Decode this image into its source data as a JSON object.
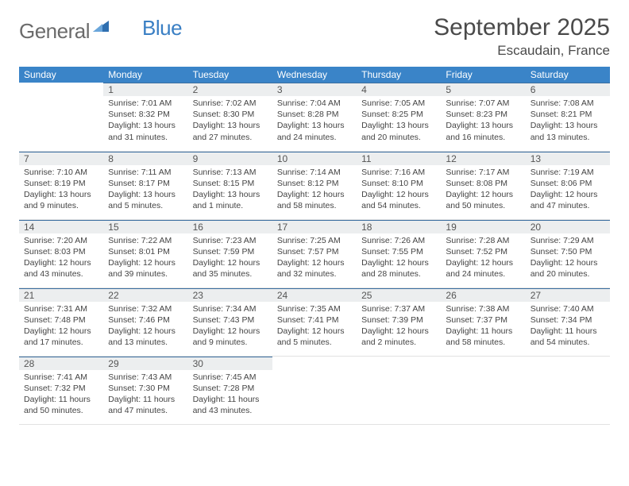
{
  "logo": {
    "general": "General",
    "blue": "Blue"
  },
  "header": {
    "title": "September 2025",
    "location": "Escaudain, France"
  },
  "colors": {
    "header_bg": "#3a84c8",
    "header_text": "#ffffff",
    "daynum_bg": "#eceeef",
    "daynum_border": "#3a6ea0",
    "text": "#444444",
    "logo_gray": "#6b6b6b",
    "logo_blue": "#3a7fc4"
  },
  "weekdays": [
    "Sunday",
    "Monday",
    "Tuesday",
    "Wednesday",
    "Thursday",
    "Friday",
    "Saturday"
  ],
  "weeks": [
    [
      null,
      {
        "n": "1",
        "sunrise": "Sunrise: 7:01 AM",
        "sunset": "Sunset: 8:32 PM",
        "dayl1": "Daylight: 13 hours",
        "dayl2": "and 31 minutes."
      },
      {
        "n": "2",
        "sunrise": "Sunrise: 7:02 AM",
        "sunset": "Sunset: 8:30 PM",
        "dayl1": "Daylight: 13 hours",
        "dayl2": "and 27 minutes."
      },
      {
        "n": "3",
        "sunrise": "Sunrise: 7:04 AM",
        "sunset": "Sunset: 8:28 PM",
        "dayl1": "Daylight: 13 hours",
        "dayl2": "and 24 minutes."
      },
      {
        "n": "4",
        "sunrise": "Sunrise: 7:05 AM",
        "sunset": "Sunset: 8:25 PM",
        "dayl1": "Daylight: 13 hours",
        "dayl2": "and 20 minutes."
      },
      {
        "n": "5",
        "sunrise": "Sunrise: 7:07 AM",
        "sunset": "Sunset: 8:23 PM",
        "dayl1": "Daylight: 13 hours",
        "dayl2": "and 16 minutes."
      },
      {
        "n": "6",
        "sunrise": "Sunrise: 7:08 AM",
        "sunset": "Sunset: 8:21 PM",
        "dayl1": "Daylight: 13 hours",
        "dayl2": "and 13 minutes."
      }
    ],
    [
      {
        "n": "7",
        "sunrise": "Sunrise: 7:10 AM",
        "sunset": "Sunset: 8:19 PM",
        "dayl1": "Daylight: 13 hours",
        "dayl2": "and 9 minutes."
      },
      {
        "n": "8",
        "sunrise": "Sunrise: 7:11 AM",
        "sunset": "Sunset: 8:17 PM",
        "dayl1": "Daylight: 13 hours",
        "dayl2": "and 5 minutes."
      },
      {
        "n": "9",
        "sunrise": "Sunrise: 7:13 AM",
        "sunset": "Sunset: 8:15 PM",
        "dayl1": "Daylight: 13 hours",
        "dayl2": "and 1 minute."
      },
      {
        "n": "10",
        "sunrise": "Sunrise: 7:14 AM",
        "sunset": "Sunset: 8:12 PM",
        "dayl1": "Daylight: 12 hours",
        "dayl2": "and 58 minutes."
      },
      {
        "n": "11",
        "sunrise": "Sunrise: 7:16 AM",
        "sunset": "Sunset: 8:10 PM",
        "dayl1": "Daylight: 12 hours",
        "dayl2": "and 54 minutes."
      },
      {
        "n": "12",
        "sunrise": "Sunrise: 7:17 AM",
        "sunset": "Sunset: 8:08 PM",
        "dayl1": "Daylight: 12 hours",
        "dayl2": "and 50 minutes."
      },
      {
        "n": "13",
        "sunrise": "Sunrise: 7:19 AM",
        "sunset": "Sunset: 8:06 PM",
        "dayl1": "Daylight: 12 hours",
        "dayl2": "and 47 minutes."
      }
    ],
    [
      {
        "n": "14",
        "sunrise": "Sunrise: 7:20 AM",
        "sunset": "Sunset: 8:03 PM",
        "dayl1": "Daylight: 12 hours",
        "dayl2": "and 43 minutes."
      },
      {
        "n": "15",
        "sunrise": "Sunrise: 7:22 AM",
        "sunset": "Sunset: 8:01 PM",
        "dayl1": "Daylight: 12 hours",
        "dayl2": "and 39 minutes."
      },
      {
        "n": "16",
        "sunrise": "Sunrise: 7:23 AM",
        "sunset": "Sunset: 7:59 PM",
        "dayl1": "Daylight: 12 hours",
        "dayl2": "and 35 minutes."
      },
      {
        "n": "17",
        "sunrise": "Sunrise: 7:25 AM",
        "sunset": "Sunset: 7:57 PM",
        "dayl1": "Daylight: 12 hours",
        "dayl2": "and 32 minutes."
      },
      {
        "n": "18",
        "sunrise": "Sunrise: 7:26 AM",
        "sunset": "Sunset: 7:55 PM",
        "dayl1": "Daylight: 12 hours",
        "dayl2": "and 28 minutes."
      },
      {
        "n": "19",
        "sunrise": "Sunrise: 7:28 AM",
        "sunset": "Sunset: 7:52 PM",
        "dayl1": "Daylight: 12 hours",
        "dayl2": "and 24 minutes."
      },
      {
        "n": "20",
        "sunrise": "Sunrise: 7:29 AM",
        "sunset": "Sunset: 7:50 PM",
        "dayl1": "Daylight: 12 hours",
        "dayl2": "and 20 minutes."
      }
    ],
    [
      {
        "n": "21",
        "sunrise": "Sunrise: 7:31 AM",
        "sunset": "Sunset: 7:48 PM",
        "dayl1": "Daylight: 12 hours",
        "dayl2": "and 17 minutes."
      },
      {
        "n": "22",
        "sunrise": "Sunrise: 7:32 AM",
        "sunset": "Sunset: 7:46 PM",
        "dayl1": "Daylight: 12 hours",
        "dayl2": "and 13 minutes."
      },
      {
        "n": "23",
        "sunrise": "Sunrise: 7:34 AM",
        "sunset": "Sunset: 7:43 PM",
        "dayl1": "Daylight: 12 hours",
        "dayl2": "and 9 minutes."
      },
      {
        "n": "24",
        "sunrise": "Sunrise: 7:35 AM",
        "sunset": "Sunset: 7:41 PM",
        "dayl1": "Daylight: 12 hours",
        "dayl2": "and 5 minutes."
      },
      {
        "n": "25",
        "sunrise": "Sunrise: 7:37 AM",
        "sunset": "Sunset: 7:39 PM",
        "dayl1": "Daylight: 12 hours",
        "dayl2": "and 2 minutes."
      },
      {
        "n": "26",
        "sunrise": "Sunrise: 7:38 AM",
        "sunset": "Sunset: 7:37 PM",
        "dayl1": "Daylight: 11 hours",
        "dayl2": "and 58 minutes."
      },
      {
        "n": "27",
        "sunrise": "Sunrise: 7:40 AM",
        "sunset": "Sunset: 7:34 PM",
        "dayl1": "Daylight: 11 hours",
        "dayl2": "and 54 minutes."
      }
    ],
    [
      {
        "n": "28",
        "sunrise": "Sunrise: 7:41 AM",
        "sunset": "Sunset: 7:32 PM",
        "dayl1": "Daylight: 11 hours",
        "dayl2": "and 50 minutes."
      },
      {
        "n": "29",
        "sunrise": "Sunrise: 7:43 AM",
        "sunset": "Sunset: 7:30 PM",
        "dayl1": "Daylight: 11 hours",
        "dayl2": "and 47 minutes."
      },
      {
        "n": "30",
        "sunrise": "Sunrise: 7:45 AM",
        "sunset": "Sunset: 7:28 PM",
        "dayl1": "Daylight: 11 hours",
        "dayl2": "and 43 minutes."
      },
      null,
      null,
      null,
      null
    ]
  ]
}
